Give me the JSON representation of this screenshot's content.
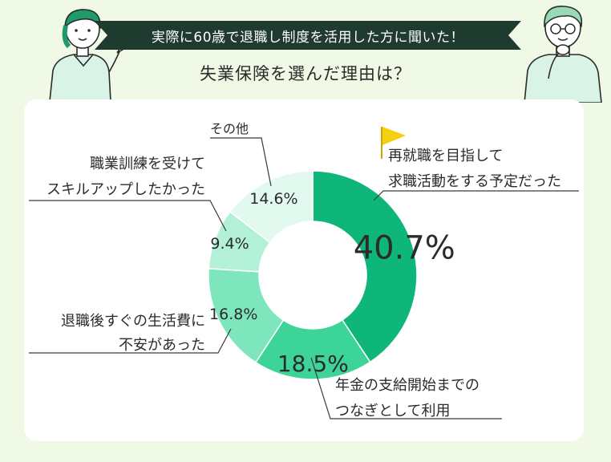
{
  "header": {
    "banner": "実際に60歳で退職し制度を活用した方に聞いた！",
    "subtitle": "失業保険を選んだ理由は？"
  },
  "colors": {
    "background": "#f0f8e6",
    "banner": "#1f3a2e",
    "flag": "#f5cf12"
  },
  "chart_data": {
    "type": "pie",
    "donut": true,
    "unit": "%",
    "slices": [
      {
        "label": [
          "再就職を目指して",
          "求職活動をする予定だった"
        ],
        "value": 40.7,
        "value_label": "40.7%",
        "color": "#0fb67a"
      },
      {
        "label": [
          "年金の支給開始までの",
          "つなぎとして利用"
        ],
        "value": 18.5,
        "value_label": "18.5%",
        "color": "#3dd49a"
      },
      {
        "label": [
          "退職後すぐの生活費に",
          "不安があった"
        ],
        "value": 16.8,
        "value_label": "16.8%",
        "color": "#7ee6bc"
      },
      {
        "label": [
          "職業訓練を受けて",
          "スキルアップしたかった"
        ],
        "value": 9.4,
        "value_label": "9.4%",
        "color": "#b2f0d8"
      },
      {
        "label": [
          "その他"
        ],
        "value": 14.6,
        "value_label": "14.6%",
        "color": "#e2f9ef"
      }
    ]
  }
}
